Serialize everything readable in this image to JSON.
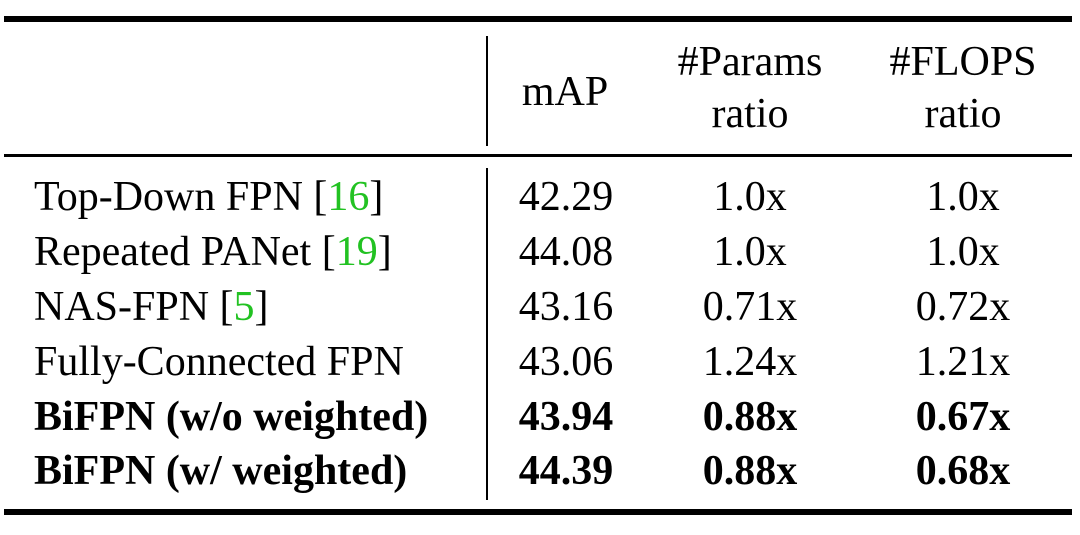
{
  "table": {
    "headers": [
      {
        "line1": "mAP",
        "line2": ""
      },
      {
        "line1": "#Params",
        "line2": "ratio"
      },
      {
        "line1": "#FLOPS",
        "line2": "ratio"
      }
    ],
    "rows": [
      {
        "method": "Top-Down FPN [",
        "ref": "16",
        "close": "]",
        "map": "42.29",
        "params": "1.0x",
        "flops": "1.0x",
        "bold": false
      },
      {
        "method": "Repeated PANet [",
        "ref": "19",
        "close": "]",
        "map": "44.08",
        "params": "1.0x",
        "flops": "1.0x",
        "bold": false
      },
      {
        "method": "NAS-FPN [",
        "ref": "5",
        "close": "]",
        "map": "43.16",
        "params": "0.71x",
        "flops": "0.72x",
        "bold": false
      },
      {
        "method": "Fully-Connected FPN",
        "ref": "",
        "close": "",
        "map": "43.06",
        "params": "1.24x",
        "flops": "1.21x",
        "bold": false
      },
      {
        "method": "BiFPN (w/o weighted)",
        "ref": "",
        "close": "",
        "map": "43.94",
        "params": "0.88x",
        "flops": "0.67x",
        "bold": true
      },
      {
        "method": "BiFPN (w/ weighted)",
        "ref": "",
        "close": "",
        "map": "44.39",
        "params": "0.88x",
        "flops": "0.68x",
        "bold": true
      }
    ],
    "colors": {
      "rule": "#000000",
      "citation": "#22c222",
      "text": "#000000"
    }
  }
}
